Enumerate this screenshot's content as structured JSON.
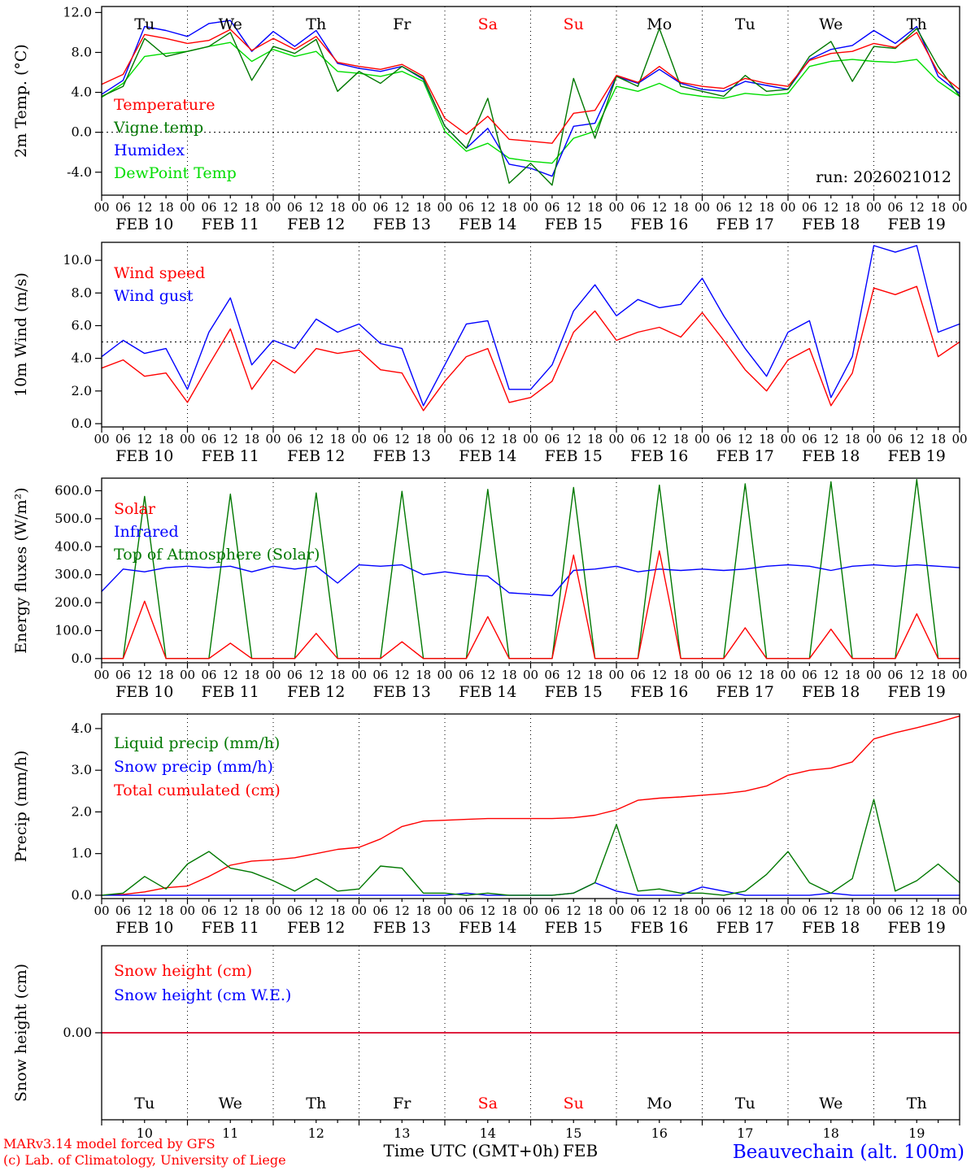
{
  "meta": {
    "credit_line1": "MARv3.14 model forced by GFS",
    "credit_line2": "(c) Lab. of Climatology, University of Liege",
    "xaxis_title": "Time UTC (GMT+0h)",
    "xaxis_month": "FEB",
    "station": "Beauvechain (alt. 100m)"
  },
  "colors": {
    "red": "#ff0000",
    "blue": "#0000ff",
    "dark_green": "#007800",
    "light_green": "#00dd00",
    "weekend_label": "#ff0000",
    "axis": "#000000"
  },
  "hour_ticks": [
    "00",
    "06",
    "12",
    "18"
  ],
  "days": [
    {
      "weekday": "Tu",
      "label": "FEB 10",
      "num": "10",
      "weekend": false
    },
    {
      "weekday": "We",
      "label": "FEB 11",
      "num": "11",
      "weekend": false
    },
    {
      "weekday": "Th",
      "label": "FEB 12",
      "num": "12",
      "weekend": false
    },
    {
      "weekday": "Fr",
      "label": "FEB 13",
      "num": "13",
      "weekend": false
    },
    {
      "weekday": "Sa",
      "label": "FEB 14",
      "num": "14",
      "weekend": true
    },
    {
      "weekday": "Su",
      "label": "FEB 15",
      "num": "15",
      "weekend": true
    },
    {
      "weekday": "Mo",
      "label": "FEB 16",
      "num": "16",
      "weekend": false
    },
    {
      "weekday": "Tu",
      "label": "FEB 17",
      "num": "17",
      "weekend": false
    },
    {
      "weekday": "We",
      "label": "FEB 18",
      "num": "18",
      "weekend": false
    },
    {
      "weekday": "Th",
      "label": "FEB 19",
      "num": "19",
      "weekend": false
    }
  ],
  "chart_data": [
    {
      "id": "temp",
      "type": "line",
      "ylabel": "2m Temp. (°C)",
      "ylim": [
        -6.3,
        12.6
      ],
      "yticks": [
        -4.0,
        0.0,
        4.0,
        8.0,
        12.0
      ],
      "ytick_decimals": 1,
      "dashed_hline": 0.0,
      "xlim_hours": [
        0,
        240
      ],
      "x_step_hours": 6,
      "weekday_row": "top",
      "annotation": "run: 2026021012",
      "series": [
        {
          "name": "Temperature",
          "color": "#ff0000",
          "values": [
            4.8,
            5.8,
            9.8,
            9.4,
            8.9,
            9.2,
            10.3,
            8.2,
            9.4,
            8.3,
            9.6,
            7.0,
            6.6,
            6.3,
            6.8,
            5.6,
            1.4,
            -0.2,
            1.6,
            -0.7,
            -0.9,
            -1.1,
            1.9,
            2.2,
            5.7,
            5.0,
            6.6,
            5.0,
            4.6,
            4.4,
            5.4,
            4.9,
            4.6,
            7.2,
            7.9,
            8.1,
            8.9,
            8.5,
            10.0,
            6.0,
            4.3
          ]
        },
        {
          "name": "Vigne temp",
          "color": "#007800",
          "values": [
            3.6,
            4.6,
            9.4,
            7.6,
            8.1,
            8.6,
            10.0,
            5.2,
            8.6,
            7.9,
            9.3,
            4.1,
            6.1,
            4.9,
            6.6,
            5.4,
            0.6,
            -1.6,
            3.4,
            -5.1,
            -3.1,
            -5.3,
            5.4,
            -0.6,
            5.6,
            4.6,
            10.4,
            4.6,
            4.1,
            3.6,
            5.7,
            4.1,
            4.3,
            7.6,
            9.1,
            5.1,
            8.6,
            8.4,
            10.4,
            6.6,
            3.6
          ]
        },
        {
          "name": "Humidex",
          "color": "#0000ff",
          "values": [
            3.8,
            5.2,
            10.6,
            10.2,
            9.6,
            10.9,
            11.2,
            8.1,
            10.1,
            8.6,
            10.2,
            6.9,
            6.4,
            6.1,
            6.6,
            5.3,
            0.6,
            -1.6,
            0.4,
            -3.2,
            -3.6,
            -4.4,
            0.6,
            0.9,
            5.6,
            4.9,
            6.3,
            4.9,
            4.3,
            4.1,
            5.1,
            4.7,
            4.3,
            7.3,
            8.3,
            8.7,
            10.2,
            8.9,
            10.6,
            5.6,
            3.9
          ]
        },
        {
          "name": "DewPoint Temp",
          "color": "#00dd00",
          "values": [
            3.5,
            4.9,
            7.6,
            7.9,
            8.1,
            8.6,
            9.0,
            7.1,
            8.3,
            7.6,
            8.1,
            6.1,
            5.9,
            5.6,
            6.1,
            5.1,
            0.1,
            -1.9,
            -1.1,
            -2.6,
            -2.9,
            -3.1,
            -0.6,
            0.1,
            4.6,
            4.1,
            4.9,
            3.9,
            3.6,
            3.4,
            3.9,
            3.7,
            3.9,
            6.6,
            7.1,
            7.3,
            7.1,
            7.0,
            7.3,
            5.1,
            3.6
          ]
        }
      ]
    },
    {
      "id": "wind",
      "type": "line",
      "ylabel": "10m Wind (m/s)",
      "ylim": [
        -0.2,
        11.1
      ],
      "yticks": [
        0.0,
        2.0,
        4.0,
        6.0,
        8.0,
        10.0
      ],
      "ytick_decimals": 1,
      "dashed_hline": 5.0,
      "xlim_hours": [
        0,
        240
      ],
      "x_step_hours": 6,
      "series": [
        {
          "name": "Wind speed",
          "color": "#ff0000",
          "values": [
            3.4,
            3.9,
            2.9,
            3.1,
            1.3,
            3.6,
            5.8,
            2.1,
            3.9,
            3.1,
            4.6,
            4.3,
            4.5,
            3.3,
            3.1,
            0.8,
            2.6,
            4.1,
            4.6,
            1.3,
            1.6,
            2.6,
            5.6,
            6.9,
            5.1,
            5.6,
            5.9,
            5.3,
            6.8,
            5.1,
            3.3,
            2.0,
            3.9,
            4.6,
            1.1,
            3.1,
            8.3,
            7.9,
            8.4,
            4.1,
            5.0
          ]
        },
        {
          "name": "Wind gust",
          "color": "#0000ff",
          "values": [
            4.1,
            5.1,
            4.3,
            4.6,
            2.1,
            5.6,
            7.7,
            3.6,
            5.1,
            4.6,
            6.4,
            5.6,
            6.1,
            4.9,
            4.6,
            1.1,
            3.6,
            6.1,
            6.3,
            2.1,
            2.1,
            3.6,
            6.9,
            8.5,
            6.6,
            7.6,
            7.1,
            7.3,
            8.9,
            6.6,
            4.6,
            2.9,
            5.6,
            6.3,
            1.6,
            4.1,
            10.9,
            10.5,
            10.9,
            5.6,
            6.1
          ]
        }
      ]
    },
    {
      "id": "energy",
      "type": "line",
      "ylabel": "Energy fluxes (W/m²)",
      "ylim": [
        -15,
        645
      ],
      "yticks": [
        0,
        100,
        200,
        300,
        400,
        500,
        600
      ],
      "ytick_decimals": 1,
      "xlim_hours": [
        0,
        240
      ],
      "x_step_hours": 6,
      "series": [
        {
          "name": "Solar",
          "color": "#ff0000",
          "values": [
            0,
            0,
            205,
            0,
            0,
            0,
            55,
            0,
            0,
            0,
            90,
            0,
            0,
            0,
            60,
            0,
            0,
            0,
            150,
            0,
            0,
            0,
            370,
            0,
            0,
            0,
            385,
            0,
            0,
            0,
            110,
            0,
            0,
            0,
            105,
            0,
            0,
            0,
            160,
            0,
            0
          ]
        },
        {
          "name": "Infrared",
          "color": "#0000ff",
          "values": [
            240,
            320,
            310,
            325,
            330,
            325,
            330,
            310,
            330,
            320,
            330,
            270,
            335,
            330,
            335,
            300,
            310,
            300,
            295,
            235,
            230,
            225,
            315,
            320,
            330,
            310,
            320,
            315,
            320,
            315,
            320,
            330,
            335,
            330,
            315,
            330,
            335,
            330,
            335,
            330,
            325
          ]
        },
        {
          "name": "Top of Atmosphere (Solar)",
          "color": "#007800",
          "values": [
            0,
            0,
            580,
            0,
            0,
            0,
            588,
            0,
            0,
            0,
            592,
            0,
            0,
            0,
            598,
            0,
            0,
            0,
            605,
            0,
            0,
            0,
            612,
            0,
            0,
            0,
            620,
            0,
            0,
            0,
            625,
            0,
            0,
            0,
            632,
            0,
            0,
            0,
            640,
            0,
            0
          ]
        }
      ]
    },
    {
      "id": "precip",
      "type": "line",
      "ylabel": "Precip (mm/h)",
      "ylim": [
        -0.08,
        4.35
      ],
      "yticks": [
        0.0,
        1.0,
        2.0,
        3.0,
        4.0
      ],
      "ytick_decimals": 1,
      "xlim_hours": [
        0,
        240
      ],
      "x_step_hours": 6,
      "series": [
        {
          "name": "Liquid precip (mm/h)",
          "color": "#007800",
          "values": [
            0,
            0.05,
            0.45,
            0.15,
            0.75,
            1.05,
            0.65,
            0.55,
            0.35,
            0.1,
            0.4,
            0.1,
            0.15,
            0.7,
            0.65,
            0.05,
            0.05,
            0,
            0.05,
            0,
            0,
            0,
            0.05,
            0.3,
            1.7,
            0.1,
            0.15,
            0.05,
            0.05,
            0,
            0.1,
            0.5,
            1.05,
            0.3,
            0.05,
            0.4,
            2.3,
            0.1,
            0.35,
            0.75,
            0.3
          ]
        },
        {
          "name": "Snow precip (mm/h)",
          "color": "#0000ff",
          "values": [
            0,
            0,
            0,
            0,
            0,
            0,
            0,
            0,
            0,
            0,
            0,
            0,
            0,
            0,
            0,
            0,
            0,
            0.05,
            0,
            0,
            0,
            0,
            0.05,
            0.3,
            0.1,
            0,
            0,
            0,
            0.2,
            0.1,
            0,
            0,
            0,
            0,
            0.05,
            0,
            0,
            0,
            0,
            0,
            0
          ]
        },
        {
          "name": "Total cumulated (cm)",
          "color": "#ff0000",
          "values": [
            0,
            0.02,
            0.08,
            0.18,
            0.22,
            0.45,
            0.72,
            0.82,
            0.85,
            0.9,
            1.0,
            1.1,
            1.15,
            1.35,
            1.65,
            1.78,
            1.8,
            1.82,
            1.84,
            1.84,
            1.84,
            1.84,
            1.86,
            1.92,
            2.05,
            2.28,
            2.33,
            2.36,
            2.4,
            2.44,
            2.5,
            2.62,
            2.88,
            3.0,
            3.05,
            3.2,
            3.75,
            3.9,
            4.02,
            4.15,
            4.3
          ]
        }
      ]
    },
    {
      "id": "snow",
      "type": "line",
      "ylabel": "Snow height (cm)",
      "ylim": [
        -1,
        1
      ],
      "yticks": [
        0
      ],
      "ytick_decimals": 2,
      "xlim_hours": [
        0,
        240
      ],
      "x_step_hours": 6,
      "weekday_row": "bottom",
      "hide_hour_labels": true,
      "hide_date_labels": true,
      "show_day_numbers": true,
      "series": [
        {
          "name": "Snow height (cm)",
          "color": "#ff0000",
          "flat": 0
        },
        {
          "name": "Snow height (cm W.E.)",
          "color": "#0000ff",
          "flat": 0
        }
      ]
    }
  ]
}
